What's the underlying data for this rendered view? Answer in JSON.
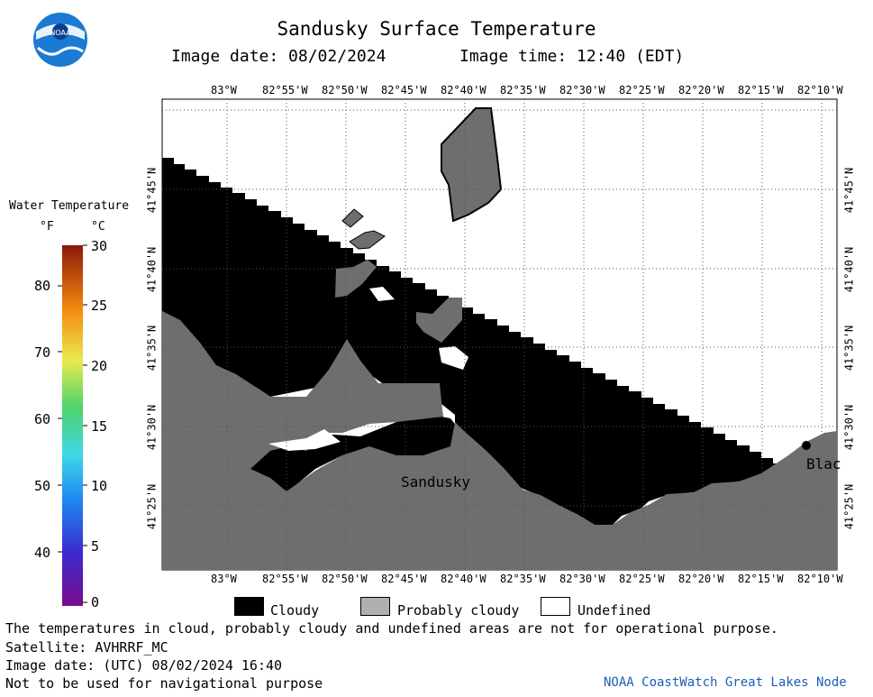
{
  "header": {
    "title": "Sandusky Surface Temperature",
    "image_date": "Image date: 08/02/2024",
    "image_time": "Image time: 12:40 (EDT)",
    "logo_text": "NOAA"
  },
  "map": {
    "lon_labels": [
      "83°W",
      "82°55'W",
      "82°50'W",
      "82°45'W",
      "82°40'W",
      "82°35'W",
      "82°30'W",
      "82°25'W",
      "82°20'W",
      "82°15'W",
      "82°10'W"
    ],
    "lat_labels": [
      "41°45'N",
      "41°40'N",
      "41°35'N",
      "41°30'N",
      "41°25'N"
    ],
    "place_labels": {
      "sandusky": "Sandusky",
      "blac": "Blac"
    },
    "colors": {
      "cloudy": "#000000",
      "probably_cloudy": "#6e6e6e",
      "undefined": "#ffffff"
    }
  },
  "colorbar": {
    "title": "Water Temperature",
    "unit_f": "°F",
    "unit_c": "°C",
    "f_ticks": [
      "80",
      "70",
      "60",
      "50",
      "40"
    ],
    "c_ticks": [
      "30",
      "25",
      "20",
      "15",
      "10",
      "5",
      "0"
    ]
  },
  "legend": {
    "cloudy": "Cloudy",
    "probably_cloudy": "Probably cloudy",
    "undefined": "Undefined"
  },
  "footer": {
    "disclaimer": "The temperatures in cloud, probably cloudy and undefined areas are not for operational purpose.",
    "satellite": "Satellite: AVHRRF_MC",
    "utc_date": "Image date: (UTC) 08/02/2024  16:40",
    "nav_warning": "Not to be used for navigational purpose",
    "credit": "NOAA CoastWatch Great Lakes Node"
  }
}
